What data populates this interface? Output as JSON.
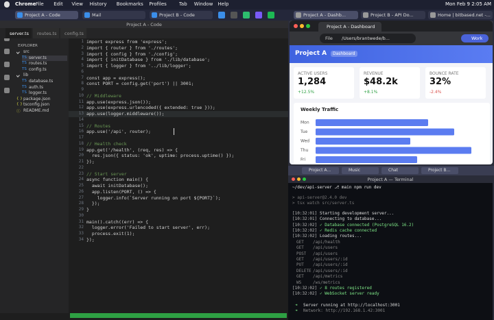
{
  "menubar": {
    "app": "Chrome",
    "menus": [
      "File",
      "Edit",
      "View",
      "History",
      "Bookmarks",
      "Profiles",
      "Tab",
      "Window",
      "Help"
    ],
    "clock": "Mon Feb 9  2:05 AM"
  },
  "top_tabs": {
    "left": [
      "Project A - Code",
      "Mail",
      "Project B - Code"
    ],
    "right": [
      "Project A - Dashb...",
      "Project B - API Do...",
      "Home | bitbased.net -..."
    ]
  },
  "editor": {
    "title": "Project A - Code",
    "tabs": [
      "server.ts",
      "routes.ts",
      "config.ts"
    ],
    "explorer_title": "EXPLORER",
    "tree": [
      {
        "name": "src",
        "children": [
          {
            "icon": "TS",
            "name": "server.ts"
          },
          {
            "icon": "TS",
            "name": "routes.ts"
          },
          {
            "icon": "TS",
            "name": "config.ts"
          }
        ]
      },
      {
        "name": "lib",
        "children": [
          {
            "icon": "TS",
            "name": "database.ts"
          },
          {
            "icon": "TS",
            "name": "auth.ts"
          },
          {
            "icon": "TS",
            "name": "logger.ts"
          }
        ]
      },
      {
        "icon": "{ }",
        "name": "package.json"
      },
      {
        "icon": "{ }",
        "name": "tsconfig.json"
      },
      {
        "icon": "ⓘ",
        "name": "README.md"
      }
    ],
    "line_numbers": [
      1,
      2,
      3,
      4,
      5,
      6,
      7,
      8,
      9,
      10,
      11,
      12,
      13,
      14,
      15,
      16,
      17,
      18,
      19,
      20,
      21,
      22,
      23,
      24,
      25,
      26,
      27,
      28,
      29,
      30,
      31,
      32,
      33,
      34
    ],
    "code": [
      {
        "line": 1,
        "text": "import express from 'express';"
      },
      {
        "line": 2,
        "text": "import { router } from './routes';"
      },
      {
        "line": 3,
        "text": "import { config } from './config';"
      },
      {
        "line": 4,
        "text": "import { initDatabase } from './lib/database';"
      },
      {
        "line": 5,
        "text": "import { logger } from '../lib/logger';"
      },
      {
        "line": 7,
        "text": "const app = express();"
      },
      {
        "line": 8,
        "text": "const PORT = config.get('port') || 3001;"
      },
      {
        "line": 10,
        "text": "// Middleware"
      },
      {
        "line": 11,
        "text": "app.use(express.json());"
      },
      {
        "line": 12,
        "text": "app.use(express.urlencoded({ extended: true }));"
      },
      {
        "line": 13,
        "text": "app.use(logger.middleware());"
      },
      {
        "line": 15,
        "text": "// Routes"
      },
      {
        "line": 16,
        "text": "app.use('/api', router);"
      },
      {
        "line": 18,
        "text": "// Health check"
      },
      {
        "line": 19,
        "text": "app.get('/health', (req, res) => {"
      },
      {
        "line": 20,
        "text": "  res.json({ status: 'ok', uptime: process.uptime() });"
      },
      {
        "line": 21,
        "text": "});"
      },
      {
        "line": 23,
        "text": "// Start server"
      },
      {
        "line": 24,
        "text": "async function main() {"
      },
      {
        "line": 25,
        "text": "  await initDatabase();"
      },
      {
        "line": 26,
        "text": "  app.listen(PORT, () => {"
      },
      {
        "line": 27,
        "text": "    logger.info(`Server running on port ${PORT}`);"
      },
      {
        "line": 28,
        "text": "  });"
      },
      {
        "line": 29,
        "text": "}"
      },
      {
        "line": 31,
        "text": "main().catch((err) => {"
      },
      {
        "line": 32,
        "text": "  logger.error('Failed to start server', err);"
      },
      {
        "line": 33,
        "text": "  process.exit(1);"
      },
      {
        "line": 34,
        "text": "});"
      }
    ]
  },
  "browser": {
    "tab": "Project A - Dashboard",
    "url_scheme": "File",
    "url": "/Users/brantwede/b...",
    "profile": "Work",
    "header": {
      "title": "Project A",
      "badge": "Dashboard"
    },
    "cards": [
      {
        "label": "ACTIVE USERS",
        "value": "1,284",
        "change": "+12.5%"
      },
      {
        "label": "REVENUE",
        "value": "$48.2k",
        "change": "+8.1%"
      },
      {
        "label": "BOUNCE RATE",
        "value": "32%",
        "change": "-2.4%"
      }
    ],
    "chart_data": {
      "type": "bar",
      "title": "Weekly Traffic",
      "categories": [
        "Mon",
        "Tue",
        "Wed",
        "Thu",
        "Fri"
      ],
      "values": [
        164,
        202,
        138,
        227,
        148
      ],
      "color": "#5b7cf0"
    }
  },
  "background_windows": [
    "Project A...",
    "Music",
    "Chat",
    "Project B..."
  ],
  "terminal": {
    "title": "Project A — Terminal",
    "prompt": "~/dev/api-server ⎇ main npm run dev",
    "script": [
      "> api-server@2.4.0 dev",
      "> tsx watch src/server.ts"
    ],
    "log": [
      {
        "time": "[10:32:01]",
        "text": "Starting development server..."
      },
      {
        "time": "[10:32:01]",
        "text": "Connecting to database..."
      },
      {
        "time": "[10:32:02]",
        "text": "✓ Database connected (PostgreSQL 16.2)"
      },
      {
        "time": "[10:32:02]",
        "text": "✓ Redis cache connected"
      },
      {
        "time": "[10:32:02]",
        "text": "Loading routes..."
      }
    ],
    "routes": [
      [
        "GET",
        "/api/health"
      ],
      [
        "GET",
        "/api/users"
      ],
      [
        "POST",
        "/api/users"
      ],
      [
        "GET",
        "/api/users/:id"
      ],
      [
        "PUT",
        "/api/users/:id"
      ],
      [
        "DELETE",
        "/api/users/:id"
      ],
      [
        "GET",
        "/api/metrics"
      ],
      [
        "WS",
        "/ws/metrics"
      ]
    ],
    "log2": [
      {
        "time": "[10:32:02]",
        "text": "✓ 8 routes registered"
      },
      {
        "time": "[10:32:02]",
        "text": "✓ WebSocket server ready"
      }
    ],
    "urls": [
      {
        "arrow": "➜",
        "text": "Server running at http://localhost:3001"
      },
      {
        "arrow": "➜",
        "text": "Network: http://192.168.1.42:3001"
      }
    ]
  }
}
